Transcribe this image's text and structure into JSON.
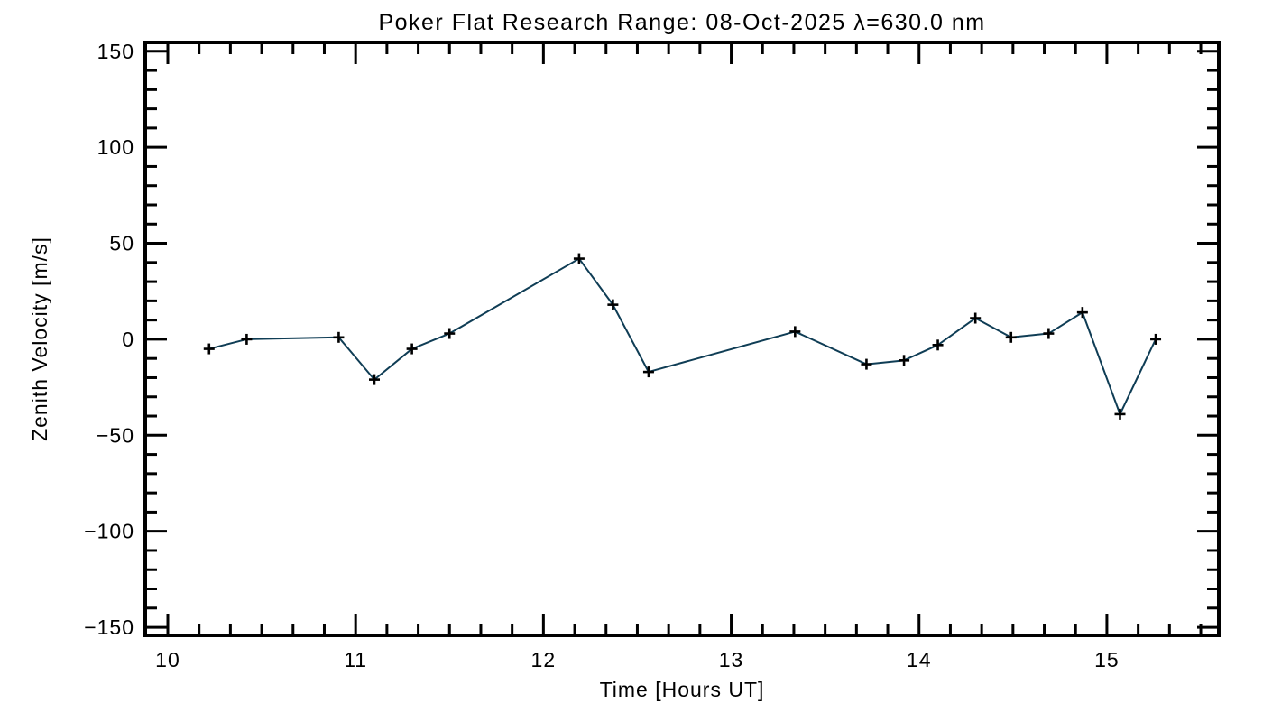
{
  "window": {
    "background_color": "#ffffff"
  },
  "chart_data": {
    "type": "line",
    "title": "Poker Flat Research Range: 08-Oct-2025 λ=630.0 nm",
    "xlabel": "Time [Hours UT]",
    "ylabel": "Zenith Velocity [m/s]",
    "x": [
      10.22,
      10.42,
      10.91,
      11.1,
      11.3,
      11.5,
      12.19,
      12.37,
      12.56,
      13.34,
      13.72,
      13.92,
      14.1,
      14.3,
      14.49,
      14.69,
      14.87,
      15.07,
      15.26
    ],
    "y": [
      -5,
      0,
      1,
      -21,
      -5,
      3,
      42,
      18,
      -17,
      4,
      -13,
      -11,
      -3,
      11,
      1,
      3,
      14,
      -39,
      0
    ],
    "xlim": [
      9.88,
      15.596
    ],
    "ylim": [
      -154.2,
      154.6
    ],
    "x_major_ticks": [
      10,
      11,
      12,
      13,
      14,
      15
    ],
    "x_tick_labels": [
      "10",
      "11",
      "12",
      "13",
      "14",
      "15"
    ],
    "x_minor_step": 0.166667,
    "y_major_ticks": [
      -150,
      -100,
      -50,
      0,
      50,
      100,
      150
    ],
    "y_tick_labels": [
      "-150",
      "-100",
      "-50",
      "0",
      "50",
      "100",
      "150"
    ],
    "y_minor_step": 10,
    "marker": "plus",
    "line_color": "#0f3d55",
    "marker_color": "#000000",
    "axis_color": "#000000",
    "grid": false,
    "legend": null
  }
}
